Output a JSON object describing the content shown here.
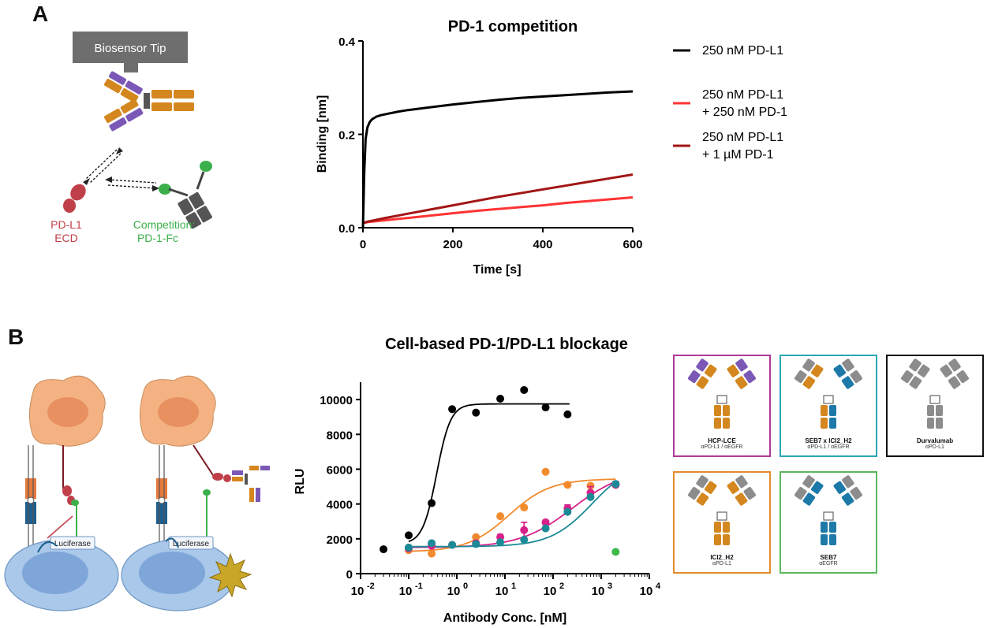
{
  "panels": {
    "a_label": "A",
    "b_label": "B"
  },
  "schematic_a": {
    "tip_label": "Biosensor Tip",
    "pdl1_label_line1": "PD-L1",
    "pdl1_label_line2": "ECD",
    "comp_label_line1": "Competition:",
    "comp_label_line2": "PD-1-Fc"
  },
  "schematic_b": {
    "luciferase_1": "Luciferase",
    "luciferase_2": "Luciferase"
  },
  "legend_cards": [
    {
      "name": "HCP-LCE",
      "sub": "αPD-L1 / αEGFR",
      "border": "#b0399a"
    },
    {
      "name": "SEB7 x ICI2_H2",
      "sub": "αPD-L1 / αEGFR",
      "border": "#2aa7b5"
    },
    {
      "name": "Durvalumab",
      "sub": "αPD-L1",
      "border": "#111111"
    },
    {
      "name": "ICI2_H2",
      "sub": "αPD-L1",
      "border": "#e58a2e"
    },
    {
      "name": "SEB7",
      "sub": "αEGFR",
      "border": "#5bb85b"
    }
  ],
  "colors": {
    "orange_ab": "#d4871e",
    "purple_ab": "#7b58b5",
    "blue_ab": "#1d7aa8",
    "grey_ab": "#8c8c8c",
    "cell": "#f4b283",
    "nucleus": "#e89060",
    "target_cell": "#a9c8ea"
  },
  "chart_data": [
    {
      "type": "line",
      "title": "PD-1 competition",
      "xlabel": "Time [s]",
      "ylabel": "Binding [nm]",
      "xlim": [
        0,
        600
      ],
      "ylim": [
        0,
        0.4
      ],
      "xticks": [
        0,
        200,
        400,
        600
      ],
      "yticks": [
        0.0,
        0.2,
        0.4
      ],
      "ytick_labels": [
        "0.0",
        "0.2",
        "0.4"
      ],
      "series": [
        {
          "name": "250 nM PD-L1",
          "color": "#000000",
          "x": [
            0,
            3,
            6,
            10,
            15,
            20,
            30,
            40,
            60,
            80,
            100,
            150,
            200,
            250,
            300,
            350,
            400,
            450,
            500,
            550,
            600
          ],
          "y": [
            0.0,
            0.12,
            0.19,
            0.215,
            0.226,
            0.232,
            0.238,
            0.241,
            0.245,
            0.249,
            0.252,
            0.258,
            0.264,
            0.269,
            0.274,
            0.278,
            0.281,
            0.284,
            0.287,
            0.29,
            0.292
          ]
        },
        {
          "name": "250 nM PD-L1 + 250 nM PD-1",
          "color": "#ff3333",
          "x": [
            0,
            10,
            50,
            100,
            150,
            200,
            250,
            300,
            350,
            400,
            450,
            500,
            550,
            600
          ],
          "y": [
            0.01,
            0.012,
            0.016,
            0.021,
            0.026,
            0.031,
            0.036,
            0.04,
            0.044,
            0.048,
            0.053,
            0.057,
            0.061,
            0.065
          ]
        },
        {
          "name": "250 nM PD-L1 + 1 µM PD-1",
          "color": "#a31515",
          "x": [
            0,
            10,
            50,
            100,
            150,
            200,
            250,
            300,
            350,
            400,
            450,
            500,
            550,
            600
          ],
          "y": [
            0.01,
            0.013,
            0.021,
            0.03,
            0.039,
            0.048,
            0.057,
            0.066,
            0.074,
            0.082,
            0.09,
            0.098,
            0.106,
            0.114
          ]
        }
      ],
      "legend": [
        {
          "lines": [
            "250 nM PD-L1"
          ],
          "color": "#000000"
        },
        {
          "lines": [
            "250 nM PD-L1",
            "+ 250 nM PD-1"
          ],
          "color": "#ff3333"
        },
        {
          "lines": [
            "250 nM PD-L1",
            "+ 1 µM PD-1"
          ],
          "color": "#a31515"
        }
      ]
    },
    {
      "type": "scatter",
      "title": "Cell-based PD-1/PD-L1 blockage",
      "xlabel": "Antibody Conc. [nM]",
      "ylabel": "RLU",
      "xscale": "log",
      "xlim_exp": [
        -2,
        4
      ],
      "ylim": [
        0,
        11000
      ],
      "xtick_exps": [
        -2,
        -1,
        0,
        1,
        2,
        3,
        4
      ],
      "x_tick_base": "10",
      "yticks": [
        0,
        2000,
        4000,
        6000,
        8000,
        10000
      ],
      "series": [
        {
          "name": "Durvalumab",
          "color": "#000000",
          "x": [
            0.03,
            0.1,
            0.3,
            0.8,
            2.5,
            8,
            25,
            70,
            200
          ],
          "y": [
            1400,
            2200,
            4050,
            9450,
            9250,
            10050,
            10550,
            9550,
            9150
          ],
          "err": [
            0,
            0,
            0,
            0,
            0,
            0,
            0,
            0,
            0
          ],
          "fit": {
            "bottom": 1700,
            "top": 9750,
            "ec50": 0.38,
            "hill": 3.0,
            "xmin": 0.1,
            "xmax": 220
          }
        },
        {
          "name": "ICI2_H2",
          "color": "#f28a2e",
          "x": [
            0.1,
            0.3,
            2.5,
            8,
            25,
            70,
            200,
            600
          ],
          "y": [
            1350,
            1150,
            2100,
            3300,
            3800,
            5850,
            5100,
            5050
          ],
          "err": [
            0,
            0,
            0,
            0,
            0,
            0,
            0,
            0
          ],
          "fit": {
            "bottom": 1250,
            "top": 5450,
            "ec50": 12,
            "hill": 1.0,
            "xmin": 0.1,
            "xmax": 2000
          }
        },
        {
          "name": "HCP-LCE",
          "color": "#d6218a",
          "x": [
            0.1,
            0.3,
            0.8,
            2.5,
            8,
            25,
            70,
            200,
            600,
            2000
          ],
          "y": [
            1450,
            1600,
            1650,
            1750,
            2100,
            2500,
            2950,
            3750,
            4650,
            5100
          ],
          "err": [
            0,
            0,
            0,
            100,
            150,
            450,
            100,
            200,
            350,
            200
          ],
          "fit": {
            "bottom": 1500,
            "top": 6000,
            "ec50": 250,
            "hill": 0.8,
            "xmin": 0.1,
            "xmax": 2000
          }
        },
        {
          "name": "SEB7 x ICI2_H2",
          "color": "#1b8a96",
          "x": [
            0.1,
            0.3,
            0.8,
            2.5,
            8,
            25,
            70,
            200,
            600,
            2000
          ],
          "y": [
            1500,
            1750,
            1650,
            1700,
            1800,
            1950,
            2600,
            3550,
            4400,
            5150
          ],
          "err": [
            0,
            0,
            0,
            0,
            0,
            0,
            0,
            0,
            0,
            0
          ],
          "fit": {
            "bottom": 1550,
            "top": 6500,
            "ec50": 650,
            "hill": 1.0,
            "xmin": 0.1,
            "xmax": 2000
          }
        },
        {
          "name": "SEB7",
          "color": "#3dba4b",
          "x": [
            2000
          ],
          "y": [
            1250
          ],
          "err": [
            0
          ],
          "fit": null
        }
      ]
    }
  ]
}
